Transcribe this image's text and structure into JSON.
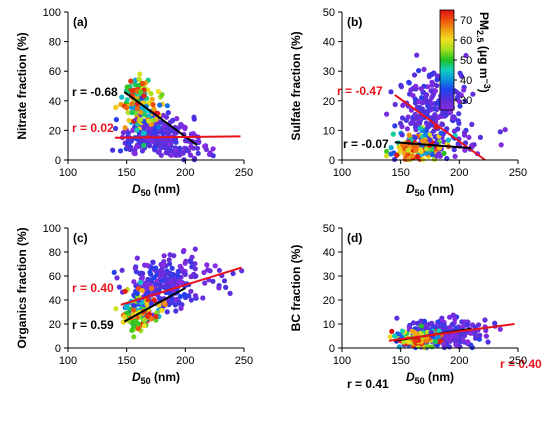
{
  "colors": {
    "black_fit": "#000000",
    "red_fit": "#e8121b",
    "axis": "#000000"
  },
  "colorbar": {
    "title": "PM2.5 (μg m⁻³)",
    "title_main": "PM",
    "title_sub": "2.5",
    "title_unit": " (μg m",
    "title_exp": "−3",
    "title_close": ")",
    "range": [
      25,
      75
    ],
    "ticks": [
      "30",
      "40",
      "50",
      "60",
      "70"
    ],
    "tick_values": [
      30,
      40,
      50,
      60,
      70
    ],
    "colormap": [
      "#8a2be2",
      "#5a2fd9",
      "#2040f0",
      "#0a90e0",
      "#10d0c0",
      "#20c020",
      "#a0e020",
      "#f0e020",
      "#f0a010",
      "#f05010",
      "#e01010"
    ]
  },
  "chart_data": [
    {
      "type": "scatter",
      "panel_label": "(a)",
      "ylabel": "Nitrate fraction (%)",
      "xlabel_main": "D",
      "xlabel_sub": "50",
      "xlabel_unit": " (nm)",
      "xlim": [
        100,
        250
      ],
      "ylim": [
        0,
        100
      ],
      "xticks": [
        100,
        150,
        200,
        250
      ],
      "yticks": [
        0,
        20,
        40,
        60,
        80,
        100
      ],
      "fits": [
        {
          "label": "r = -0.68",
          "color": "black",
          "x": [
            148,
            210
          ],
          "y": [
            46,
            10
          ]
        },
        {
          "label": "r = 0.02",
          "color": "red",
          "x": [
            140,
            247
          ],
          "y": [
            15,
            16
          ]
        }
      ],
      "clouds": [
        {
          "cx": 175,
          "cy": 17,
          "sx": 14,
          "sy": 6,
          "n": 230,
          "pm": [
            25,
            35
          ],
          "seed": 11
        },
        {
          "cx": 162,
          "cy": 32,
          "sx": 8,
          "sy": 9,
          "n": 90,
          "pm": [
            30,
            75
          ],
          "seed": 12
        },
        {
          "cx": 158,
          "cy": 44,
          "sx": 5,
          "sy": 6,
          "n": 40,
          "pm": [
            45,
            75
          ],
          "seed": 13
        },
        {
          "cx": 200,
          "cy": 10,
          "sx": 14,
          "sy": 5,
          "n": 50,
          "pm": [
            25,
            32
          ],
          "seed": 14
        }
      ]
    },
    {
      "type": "scatter",
      "panel_label": "(b)",
      "ylabel": "Sulfate fraction (%)",
      "xlabel_main": "D",
      "xlabel_sub": "50",
      "xlabel_unit": " (nm)",
      "xlim": [
        100,
        250
      ],
      "ylim": [
        0,
        50
      ],
      "xticks": [
        100,
        150,
        200,
        250
      ],
      "yticks": [
        0,
        10,
        20,
        30,
        40,
        50
      ],
      "fits": [
        {
          "label": "r = -0.47",
          "color": "red",
          "x": [
            145,
            222
          ],
          "y": [
            22,
            0
          ]
        },
        {
          "label": "r = -0.07",
          "color": "black",
          "x": [
            145,
            210
          ],
          "y": [
            6,
            4
          ]
        }
      ],
      "clouds": [
        {
          "cx": 178,
          "cy": 18,
          "sx": 13,
          "sy": 7,
          "n": 230,
          "pm": [
            25,
            34
          ],
          "seed": 21
        },
        {
          "cx": 165,
          "cy": 5,
          "sx": 11,
          "sy": 2.5,
          "n": 120,
          "pm": [
            30,
            75
          ],
          "seed": 22
        },
        {
          "cx": 162,
          "cy": 3,
          "sx": 7,
          "sy": 1.5,
          "n": 40,
          "pm": [
            55,
            75
          ],
          "seed": 23
        },
        {
          "cx": 205,
          "cy": 6,
          "sx": 15,
          "sy": 3,
          "n": 30,
          "pm": [
            25,
            32
          ],
          "seed": 24
        }
      ]
    },
    {
      "type": "scatter",
      "panel_label": "(c)",
      "ylabel": "Organics fraction (%)",
      "xlabel_main": "D",
      "xlabel_sub": "50",
      "xlabel_unit": " (nm)",
      "xlim": [
        100,
        250
      ],
      "ylim": [
        0,
        100
      ],
      "xticks": [
        100,
        150,
        200,
        250
      ],
      "yticks": [
        0,
        20,
        40,
        60,
        80,
        100
      ],
      "fits": [
        {
          "label": "r = 0.40",
          "color": "red",
          "x": [
            145,
            248
          ],
          "y": [
            36,
            67
          ]
        },
        {
          "label": "r = 0.59",
          "color": "black",
          "x": [
            148,
            200
          ],
          "y": [
            22,
            50
          ]
        }
      ],
      "clouds": [
        {
          "cx": 180,
          "cy": 52,
          "sx": 14,
          "sy": 12,
          "n": 230,
          "pm": [
            25,
            35
          ],
          "seed": 31
        },
        {
          "cx": 162,
          "cy": 33,
          "sx": 8,
          "sy": 8,
          "n": 100,
          "pm": [
            30,
            75
          ],
          "seed": 32
        },
        {
          "cx": 157,
          "cy": 24,
          "sx": 5,
          "sy": 5,
          "n": 40,
          "pm": [
            50,
            75
          ],
          "seed": 33
        },
        {
          "cx": 215,
          "cy": 62,
          "sx": 15,
          "sy": 10,
          "n": 30,
          "pm": [
            25,
            32
          ],
          "seed": 34
        }
      ]
    },
    {
      "type": "scatter",
      "panel_label": "(d)",
      "ylabel": "BC fraction (%)",
      "xlabel_main": "D",
      "xlabel_sub": "50",
      "xlabel_unit": " (nm)",
      "xlim": [
        100,
        250
      ],
      "ylim": [
        0,
        50
      ],
      "xticks": [
        100,
        150,
        200,
        250
      ],
      "yticks": [
        0,
        10,
        20,
        30,
        40,
        50
      ],
      "fits": [
        {
          "label": "r = 0.41",
          "color": "black",
          "x": [
            145,
            210
          ],
          "y": [
            3,
            8
          ]
        },
        {
          "label": "r = 0.40",
          "color": "red",
          "x": [
            140,
            247
          ],
          "y": [
            3,
            10
          ]
        }
      ],
      "clouds": [
        {
          "cx": 182,
          "cy": 6,
          "sx": 14,
          "sy": 3,
          "n": 230,
          "pm": [
            25,
            35
          ],
          "seed": 41
        },
        {
          "cx": 168,
          "cy": 4,
          "sx": 10,
          "sy": 2,
          "n": 110,
          "pm": [
            30,
            75
          ],
          "seed": 42
        },
        {
          "cx": 162,
          "cy": 3,
          "sx": 6,
          "sy": 1.2,
          "n": 40,
          "pm": [
            55,
            75
          ],
          "seed": 43
        },
        {
          "cx": 215,
          "cy": 7,
          "sx": 15,
          "sy": 3,
          "n": 30,
          "pm": [
            25,
            32
          ],
          "seed": 44
        }
      ]
    }
  ]
}
